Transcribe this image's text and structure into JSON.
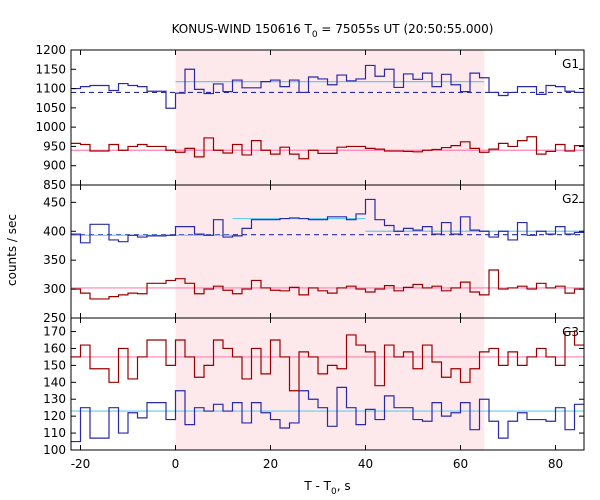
{
  "chart_data": {
    "type": "line",
    "title": {
      "prefix": "KONUS-WIND 150616 T",
      "sub": "0",
      "suffix": " = 75055s UT (20:50:55.000)"
    },
    "xlabel": {
      "prefix": "T - T",
      "sub": "0",
      "suffix": ", s"
    },
    "ylabel": "counts / sec",
    "xlim": [
      -22,
      86
    ],
    "x_ticks": [
      -20,
      0,
      20,
      40,
      60,
      80
    ],
    "shaded_interval": [
      0,
      65
    ],
    "colors": {
      "high": "#9b0000",
      "low": "#2a2aa8",
      "fit_high": "#ff80b0",
      "fit_low": "#66ccee",
      "shade": "#fde8ec"
    },
    "panels": [
      {
        "label": "G1",
        "ylim": [
          850,
          1200
        ],
        "y_ticks": [
          850,
          900,
          950,
          1000,
          1050,
          1100,
          1150,
          1200
        ],
        "bin_edges": [
          -22,
          -20,
          -18,
          -14,
          -12,
          -10,
          -8,
          -6,
          -2,
          0,
          2,
          4,
          6,
          8,
          10,
          12,
          14,
          16,
          18,
          20,
          22,
          24,
          26,
          28,
          30,
          32,
          34,
          36,
          38,
          40,
          42,
          44,
          46,
          48,
          50,
          52,
          54,
          56,
          58,
          60,
          62,
          64,
          66,
          68,
          70,
          72,
          74,
          76,
          78,
          80,
          82,
          84,
          86
        ],
        "series": [
          {
            "name": "",
            "role": "low",
            "values": [
              1100,
              1105,
              1108,
              1095,
              1113,
              1108,
              1105,
              1093,
              1049,
              1088,
              1150,
              1098,
              1087,
              1112,
              1092,
              1122,
              1102,
              1102,
              1118,
              1122,
              1105,
              1122,
              1090,
              1130,
              1125,
              1110,
              1135,
              1120,
              1125,
              1160,
              1132,
              1150,
              1103,
              1138,
              1124,
              1140,
              1105,
              1137,
              1110,
              1092,
              1140,
              1128,
              1090,
              1082,
              1090,
              1105,
              1105,
              1085,
              1108,
              1105,
              1093,
              1090
            ],
            "fit": [
              {
                "x": [
                  0,
                  65
                ],
                "y": 1118
              }
            ],
            "background": {
              "x": [
                -22,
                86
              ],
              "y": 1090
            }
          },
          {
            "name": "",
            "role": "high",
            "values": [
              958,
              955,
              938,
              955,
              940,
              950,
              955,
              950,
              940,
              935,
              945,
              923,
              972,
              940,
              933,
              955,
              928,
              965,
              940,
              930,
              948,
              930,
              918,
              940,
              932,
              932,
              948,
              950,
              950,
              945,
              943,
              938,
              938,
              937,
              936,
              940,
              942,
              947,
              952,
              962,
              945,
              935,
              943,
              958,
              950,
              965,
              975,
              930,
              937,
              955,
              938,
              952
            ],
            "fit": [
              {
                "x": [
                  -22,
                  86
                ],
                "y": 940
              }
            ],
            "background": null
          }
        ]
      },
      {
        "label": "G2",
        "ylim": [
          250,
          480
        ],
        "y_ticks": [
          250,
          300,
          350,
          400,
          450
        ],
        "bin_edges": [
          -22,
          -20,
          -18,
          -14,
          -12,
          -10,
          -8,
          -6,
          -2,
          0,
          2,
          4,
          6,
          8,
          10,
          12,
          14,
          16,
          18,
          20,
          22,
          24,
          26,
          28,
          30,
          32,
          34,
          36,
          38,
          40,
          42,
          44,
          46,
          48,
          50,
          52,
          54,
          56,
          58,
          60,
          62,
          64,
          66,
          68,
          70,
          72,
          74,
          76,
          78,
          80,
          82,
          84,
          86
        ],
        "series": [
          {
            "name": "",
            "role": "low",
            "values": [
              395,
              380,
              412,
              385,
              382,
              393,
              390,
              392,
              393,
              408,
              408,
              395,
              393,
              420,
              390,
              392,
              405,
              420,
              420,
              420,
              422,
              423,
              422,
              420,
              420,
              425,
              425,
              420,
              430,
              455,
              420,
              410,
              400,
              405,
              402,
              408,
              395,
              415,
              395,
              425,
              402,
              400,
              390,
              400,
              385,
              415,
              393,
              400,
              395,
              408,
              395,
              398
            ],
            "fit": [
              {
                "x": [
                  -22,
                  12
                ],
                "y": 393
              },
              {
                "x": [
                  12,
                  40
                ],
                "y": 422
              },
              {
                "x": [
                  40,
                  86
                ],
                "y": 400
              }
            ],
            "background": {
              "x": [
                -22,
                86
              ],
              "y": 394
            }
          },
          {
            "name": "",
            "role": "high",
            "values": [
              300,
              293,
              283,
              287,
              290,
              293,
              292,
              310,
              315,
              318,
              310,
              292,
              300,
              305,
              298,
              292,
              300,
              315,
              302,
              298,
              297,
              303,
              290,
              302,
              297,
              293,
              302,
              305,
              300,
              295,
              300,
              306,
              297,
              303,
              308,
              302,
              305,
              297,
              302,
              312,
              295,
              290,
              333,
              300,
              302,
              305,
              300,
              310,
              302,
              305,
              293,
              300
            ],
            "fit": [
              {
                "x": [
                  -22,
                  86
                ],
                "y": 302
              }
            ],
            "background": null
          }
        ]
      },
      {
        "label": "G3",
        "ylim": [
          100,
          178
        ],
        "y_ticks": [
          100,
          110,
          120,
          130,
          140,
          150,
          160,
          170
        ],
        "bin_edges": [
          -22,
          -20,
          -18,
          -14,
          -12,
          -10,
          -8,
          -6,
          -2,
          0,
          2,
          4,
          6,
          8,
          10,
          12,
          14,
          16,
          18,
          20,
          22,
          24,
          26,
          28,
          30,
          32,
          34,
          36,
          38,
          40,
          42,
          44,
          46,
          48,
          50,
          52,
          54,
          56,
          58,
          60,
          62,
          64,
          66,
          68,
          70,
          72,
          74,
          76,
          78,
          80,
          82,
          84,
          86
        ],
        "series": [
          {
            "name": "",
            "role": "low",
            "values": [
              105,
              125,
              107,
              125,
              110,
              122,
              119,
              128,
              118,
              135,
              115,
              125,
              123,
              127,
              123,
              128,
              116,
              128,
              122,
              118,
              113,
              116,
              135,
              130,
              125,
              114,
              137,
              125,
              115,
              124,
              118,
              132,
              125,
              125,
              118,
              117,
              128,
              120,
              122,
              128,
              112,
              130,
              117,
              107,
              117,
              122,
              118,
              118,
              117,
              125,
              112,
              127
            ],
            "fit": [
              {
                "x": [
                  -22,
                  86
                ],
                "y": 123
              }
            ],
            "background": null
          },
          {
            "name": "",
            "role": "high",
            "values": [
              155,
              162,
              148,
              140,
              160,
              142,
              155,
              165,
              150,
              165,
              155,
              143,
              150,
              165,
              160,
              155,
              142,
              160,
              145,
              165,
              155,
              135,
              158,
              155,
              145,
              150,
              148,
              168,
              162,
              158,
              138,
              162,
              155,
              158,
              148,
              162,
              152,
              143,
              148,
              140,
              148,
              158,
              160,
              150,
              158,
              150,
              155,
              160,
              155,
              150,
              170,
              162
            ],
            "fit": [
              {
                "x": [
                  -22,
                  86
                ],
                "y": 155
              }
            ],
            "background": null
          }
        ]
      }
    ]
  }
}
